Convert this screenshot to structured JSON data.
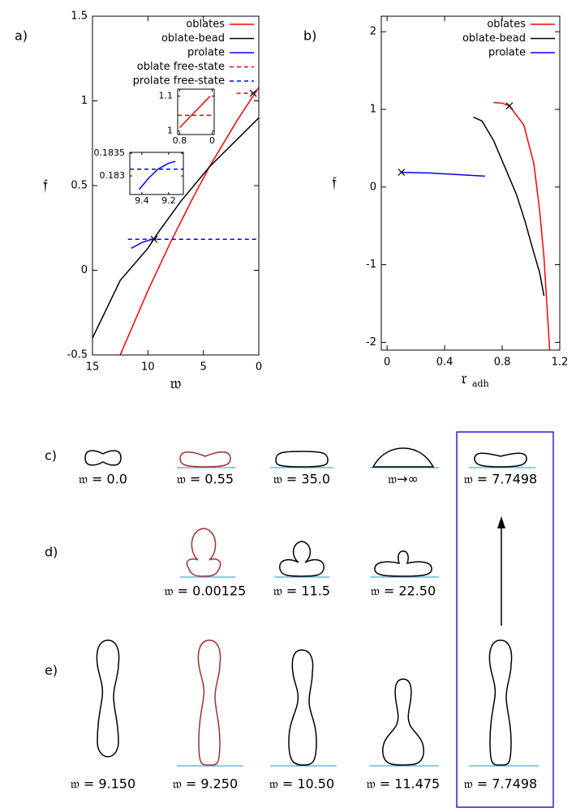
{
  "chart_data": [
    {
      "type": "line",
      "panel_label": "a)",
      "x_label": "𝔴",
      "y_label": "𝔣",
      "xlim": [
        15,
        0
      ],
      "ylim": [
        -0.5,
        1.5
      ],
      "xticks": [
        15,
        10,
        5,
        0
      ],
      "yticks": [
        -0.5,
        0,
        0.5,
        1,
        1.5
      ],
      "legend": "upper right",
      "series": [
        {
          "name": "oblates",
          "color": "#ff0000",
          "x": [
            12.5,
            10,
            8,
            6,
            4.46,
            2,
            0
          ],
          "values": [
            -0.5,
            -0.12,
            0.16,
            0.42,
            0.61,
            0.88,
            1.08
          ]
        },
        {
          "name": "oblate-bead",
          "color": "#000000",
          "x": [
            15,
            12.5,
            10,
            9,
            7,
            4.46,
            2,
            0
          ],
          "values": [
            -0.4,
            -0.06,
            0.13,
            0.23,
            0.41,
            0.61,
            0.77,
            0.9
          ]
        },
        {
          "name": "prolate",
          "color": "#0000ff",
          "x": [
            11.5,
            10.5,
            9.8,
            9.2
          ],
          "values": [
            0.13,
            0.165,
            0.18,
            0.185
          ]
        },
        {
          "name": "oblate free-state",
          "color": "#ff0000",
          "dash": true,
          "x": [
            2,
            0
          ],
          "values": [
            1.045,
            1.045
          ]
        },
        {
          "name": "prolate free-state",
          "color": "#0000ff",
          "dash": true,
          "x": [
            11.8,
            0
          ],
          "values": [
            0.183,
            0.183
          ]
        }
      ],
      "markers": {
        "x": [
          0.5,
          9.44
        ],
        "y": [
          1.045,
          0.183
        ]
      },
      "insets": [
        {
          "xlim": [
            0.85,
            -0.05
          ],
          "ylim": [
            0.99,
            1.12
          ],
          "xticks": [
            0.8,
            0
          ],
          "yticks": [
            1,
            1.1
          ],
          "series": [
            {
              "color": "#ff0000",
              "x": [
                0.8,
                0.05
              ],
              "values": [
                1.01,
                1.1
              ]
            },
            {
              "color": "#ff0000",
              "dash": true,
              "x": [
                0.85,
                -0.05
              ],
              "values": [
                1.045,
                1.045
              ]
            }
          ]
        },
        {
          "xlim": [
            9.49,
            9.09
          ],
          "ylim": [
            0.18259,
            0.18352
          ],
          "xticks": [
            9.4,
            9.2
          ],
          "yticks": [
            0.183,
            0.1835
          ],
          "series": [
            {
              "color": "#0000ff",
              "x": [
                9.42,
                9.35,
                9.28,
                9.2,
                9.15
              ],
              "values": [
                0.1827,
                0.18295,
                0.18315,
                0.18328,
                0.18332
              ]
            },
            {
              "color": "#0000ff",
              "dash": true,
              "x": [
                9.49,
                9.09
              ],
              "values": [
                0.18315,
                0.18315
              ]
            }
          ]
        }
      ]
    },
    {
      "type": "line",
      "panel_label": "b)",
      "x_label": "𝔯",
      "x_label_sub": "adh",
      "y_label": "𝔣",
      "xlim": [
        -0.04,
        1.2
      ],
      "ylim": [
        -2.1,
        2.2
      ],
      "xticks": [
        0,
        0.4,
        0.8,
        1.2
      ],
      "yticks": [
        -2,
        -1,
        0,
        1,
        2
      ],
      "legend": "upper right",
      "series": [
        {
          "name": "oblates",
          "color": "#ff0000",
          "x": [
            0.74,
            0.8,
            0.85,
            0.95,
            1.02,
            1.06,
            1.09,
            1.11,
            1.13
          ],
          "values": [
            1.09,
            1.08,
            1.045,
            0.8,
            0.3,
            -0.3,
            -0.9,
            -1.5,
            -2.1
          ]
        },
        {
          "name": "oblate-bead",
          "color": "#000000",
          "x": [
            0.6,
            0.66,
            0.74,
            0.82,
            0.9,
            0.96,
            1.02,
            1.06,
            1.09
          ],
          "values": [
            0.9,
            0.85,
            0.6,
            0.25,
            -0.1,
            -0.45,
            -0.85,
            -1.1,
            -1.4
          ]
        },
        {
          "name": "prolate",
          "color": "#0000ff",
          "x": [
            0.1,
            0.3,
            0.5,
            0.68
          ],
          "values": [
            0.19,
            0.18,
            0.16,
            0.14
          ]
        }
      ],
      "markers": {
        "x": [
          0.85,
          0.1
        ],
        "y": [
          1.045,
          0.19
        ]
      }
    }
  ],
  "shapes": {
    "rows": [
      {
        "label": "c)",
        "captions": [
          "𝔴 = 0.0",
          "𝔴 = 0.55",
          "𝔴 = 35.0",
          "𝔴→∞",
          "𝔴 = 7.7498"
        ]
      },
      {
        "label": "d)",
        "captions": [
          "𝔴 = 0.00125",
          "𝔴 = 11.5",
          "𝔴 = 22.50"
        ]
      },
      {
        "label": "e)",
        "captions": [
          "𝔴 = 9.150",
          "𝔴 = 9.250",
          "𝔴 = 10.50",
          "𝔴 = 11.475",
          "𝔴 = 7.7498"
        ]
      }
    ]
  }
}
